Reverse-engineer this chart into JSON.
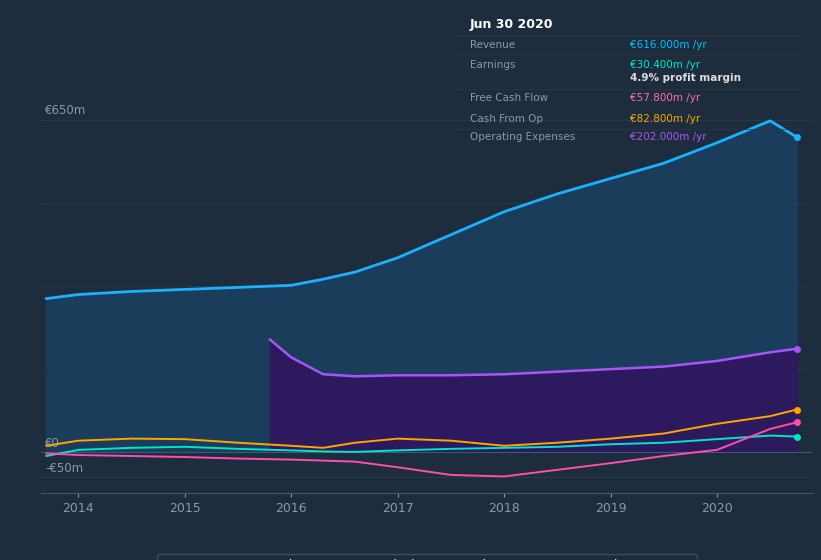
{
  "bg_color": "#1e2d3d",
  "plot_bg_color": "#1e2d3d",
  "title_box_bg": "#000000",
  "title_box_date": "Jun 30 2020",
  "info_rows": [
    {
      "label": "Revenue",
      "value": "€616.000m /yr",
      "value_color": "#00bfff",
      "extra": null
    },
    {
      "label": "Earnings",
      "value": "€30.400m /yr",
      "value_color": "#00e5cc",
      "extra": "4.9% profit margin"
    },
    {
      "label": "Free Cash Flow",
      "value": "€57.800m /yr",
      "value_color": "#ff69b4",
      "extra": null
    },
    {
      "label": "Cash From Op",
      "value": "€82.800m /yr",
      "value_color": "#ffa500",
      "extra": null
    },
    {
      "label": "Operating Expenses",
      "value": "€202.000m /yr",
      "value_color": "#a855f7",
      "extra": null
    }
  ],
  "years": [
    2013.7,
    2014.0,
    2014.5,
    2015.0,
    2015.5,
    2016.0,
    2016.3,
    2016.6,
    2017.0,
    2017.5,
    2018.0,
    2018.5,
    2019.0,
    2019.5,
    2020.0,
    2020.5,
    2020.75
  ],
  "revenue": [
    300,
    308,
    314,
    318,
    322,
    326,
    338,
    352,
    380,
    425,
    470,
    505,
    535,
    565,
    605,
    648,
    616
  ],
  "earnings": [
    -8,
    4,
    8,
    10,
    6,
    3,
    1,
    0,
    3,
    6,
    8,
    10,
    15,
    18,
    25,
    32,
    30
  ],
  "fcf": [
    -3,
    -6,
    -8,
    -10,
    -13,
    -15,
    -17,
    -19,
    -30,
    -45,
    -48,
    -35,
    -22,
    -8,
    4,
    45,
    58
  ],
  "cfo": [
    12,
    22,
    26,
    25,
    18,
    12,
    8,
    18,
    26,
    22,
    12,
    18,
    26,
    36,
    55,
    70,
    83
  ],
  "op_x": [
    2015.8,
    2016.0,
    2016.3,
    2016.6,
    2017.0,
    2017.5,
    2018.0,
    2018.5,
    2019.0,
    2019.5,
    2020.0,
    2020.5,
    2020.75
  ],
  "op_y": [
    220,
    185,
    152,
    148,
    150,
    150,
    152,
    157,
    162,
    167,
    178,
    195,
    202
  ],
  "ylim": [
    -80,
    720
  ],
  "xlim": [
    2013.65,
    2020.9
  ],
  "xtick_years": [
    2014,
    2015,
    2016,
    2017,
    2018,
    2019,
    2020
  ],
  "revenue_color": "#1ab2ff",
  "revenue_fill": "#1a3d5c",
  "earnings_color": "#00e5cc",
  "fcf_color": "#ff4daa",
  "cfo_color": "#ffa500",
  "op_color": "#a855f7",
  "op_fill": "#2d1a5e",
  "grid_color": "#253d52",
  "axis_color": "#3a5a6e",
  "label_color": "#8899aa",
  "legend_bg": "#1e2d3d",
  "legend_edge": "#3a5a6e"
}
